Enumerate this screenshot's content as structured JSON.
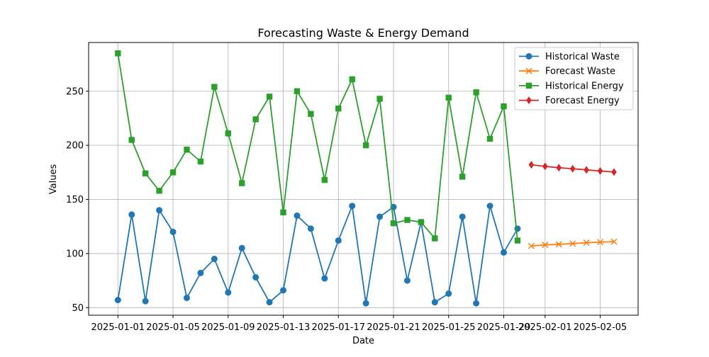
{
  "chart_data": {
    "type": "line",
    "title": "Forecasting Waste & Energy Demand",
    "xlabel": "Date",
    "ylabel": "Values",
    "x_ticks": [
      "2025-01-01",
      "2025-01-05",
      "2025-01-09",
      "2025-01-13",
      "2025-01-17",
      "2025-01-21",
      "2025-01-25",
      "2025-01-29",
      "2025-02-01",
      "2025-02-05"
    ],
    "y_ticks": [
      50,
      100,
      150,
      200,
      250
    ],
    "ylim": [
      43,
      295
    ],
    "xlim": [
      "2024-12-29T21:00",
      "2025-02-07T18:00"
    ],
    "grid": true,
    "legend_position": "upper right",
    "series": [
      {
        "name": "Historical Waste",
        "color": "#1f77b4",
        "marker": "circle",
        "x": [
          "2025-01-01",
          "2025-01-02",
          "2025-01-03",
          "2025-01-04",
          "2025-01-05",
          "2025-01-06",
          "2025-01-07",
          "2025-01-08",
          "2025-01-09",
          "2025-01-10",
          "2025-01-11",
          "2025-01-12",
          "2025-01-13",
          "2025-01-14",
          "2025-01-15",
          "2025-01-16",
          "2025-01-17",
          "2025-01-18",
          "2025-01-19",
          "2025-01-20",
          "2025-01-21",
          "2025-01-22",
          "2025-01-23",
          "2025-01-24",
          "2025-01-25",
          "2025-01-26",
          "2025-01-27",
          "2025-01-28",
          "2025-01-29",
          "2025-01-30"
        ],
        "values": [
          57,
          136,
          56,
          140,
          120,
          59,
          82,
          95,
          64,
          105,
          78,
          55,
          66,
          135,
          123,
          77,
          112,
          144,
          54,
          134,
          143,
          75,
          129,
          55,
          63,
          134,
          54,
          144,
          101,
          123
        ]
      },
      {
        "name": "Forecast Waste",
        "color": "#ff7f0e",
        "marker": "x",
        "x": [
          "2025-01-31",
          "2025-02-01",
          "2025-02-02",
          "2025-02-03",
          "2025-02-04",
          "2025-02-05",
          "2025-02-06"
        ],
        "values": [
          107,
          108,
          108.5,
          109.2,
          110,
          110.5,
          111
        ]
      },
      {
        "name": "Historical Energy",
        "color": "#2ca02c",
        "marker": "square",
        "x": [
          "2025-01-01",
          "2025-01-02",
          "2025-01-03",
          "2025-01-04",
          "2025-01-05",
          "2025-01-06",
          "2025-01-07",
          "2025-01-08",
          "2025-01-09",
          "2025-01-10",
          "2025-01-11",
          "2025-01-12",
          "2025-01-13",
          "2025-01-14",
          "2025-01-15",
          "2025-01-16",
          "2025-01-17",
          "2025-01-18",
          "2025-01-19",
          "2025-01-20",
          "2025-01-21",
          "2025-01-22",
          "2025-01-23",
          "2025-01-24",
          "2025-01-25",
          "2025-01-26",
          "2025-01-27",
          "2025-01-28",
          "2025-01-29",
          "2025-01-30"
        ],
        "values": [
          285,
          205,
          174,
          158,
          175,
          196,
          185,
          254,
          211,
          165,
          224,
          245,
          138,
          250,
          229,
          168,
          234,
          261,
          200,
          243,
          128,
          131,
          129,
          114,
          244,
          171,
          249,
          206,
          236,
          112
        ]
      },
      {
        "name": "Forecast Energy",
        "color": "#d62728",
        "marker": "diamond",
        "x": [
          "2025-01-31",
          "2025-02-01",
          "2025-02-02",
          "2025-02-03",
          "2025-02-04",
          "2025-02-05",
          "2025-02-06"
        ],
        "values": [
          182,
          180.5,
          179.3,
          178.3,
          177.3,
          176.3,
          175.3
        ]
      }
    ]
  }
}
